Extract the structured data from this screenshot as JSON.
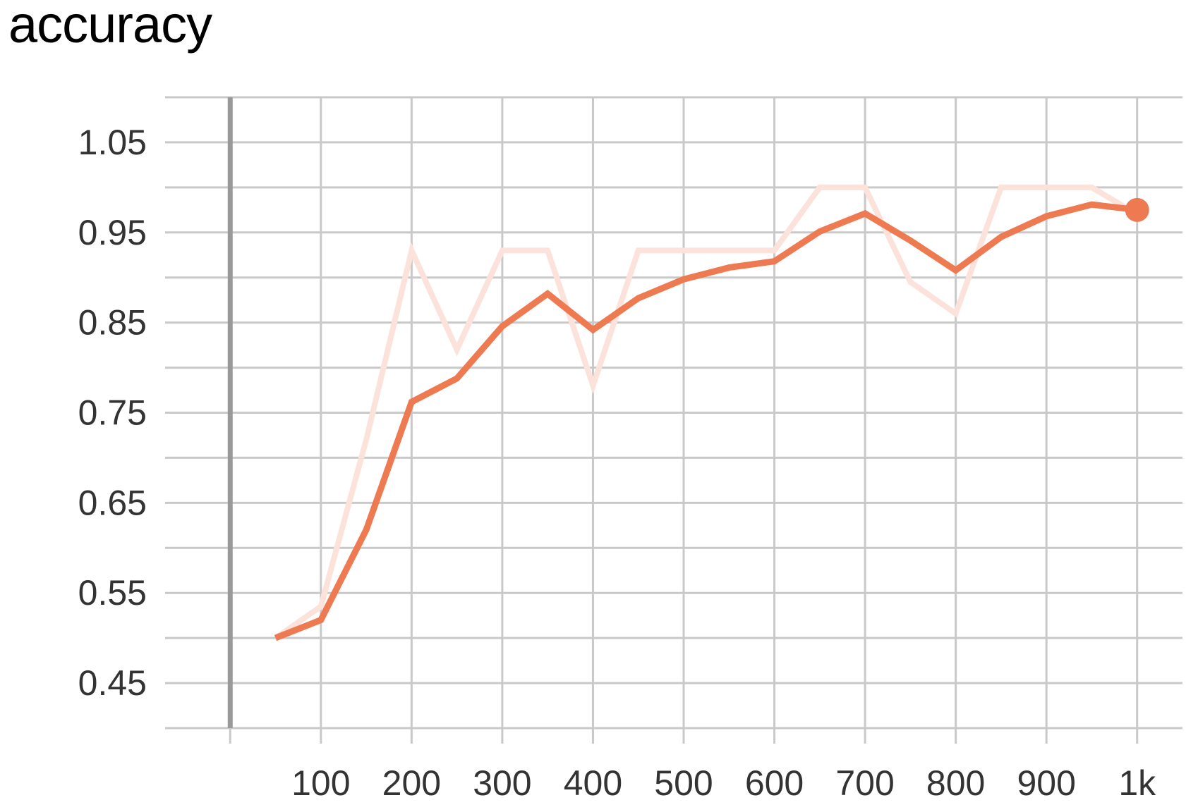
{
  "chart_data": {
    "type": "line",
    "title": "accuracy",
    "xlabel": "",
    "ylabel": "",
    "xlim": [
      -50,
      1050
    ],
    "ylim": [
      0.4,
      1.1
    ],
    "x_ticks": [
      100,
      200,
      300,
      400,
      500,
      600,
      700,
      800,
      900,
      1000
    ],
    "x_tick_labels": [
      "100",
      "200",
      "300",
      "400",
      "500",
      "600",
      "700",
      "800",
      "900",
      "1k"
    ],
    "y_ticks": [
      0.45,
      0.55,
      0.65,
      0.75,
      0.85,
      0.95,
      1.05
    ],
    "y_tick_labels": [
      "0.45",
      "0.55",
      "0.65",
      "0.75",
      "0.85",
      "0.95",
      "1.05"
    ],
    "grid": true,
    "series": [
      {
        "role": "raw",
        "color": "#fbe2da",
        "x": [
          50,
          100,
          150,
          200,
          250,
          300,
          350,
          400,
          450,
          500,
          550,
          600,
          650,
          700,
          750,
          800,
          850,
          900,
          950,
          1000
        ],
        "values": [
          0.5,
          0.535,
          0.72,
          0.93,
          0.82,
          0.93,
          0.93,
          0.78,
          0.93,
          0.93,
          0.93,
          0.93,
          1.0,
          1.0,
          0.895,
          0.86,
          1.0,
          1.0,
          1.0,
          0.97
        ]
      },
      {
        "role": "smoothed",
        "color": "#ee7a52",
        "x": [
          50,
          100,
          150,
          200,
          250,
          300,
          350,
          400,
          450,
          500,
          550,
          600,
          650,
          700,
          750,
          800,
          850,
          900,
          950,
          1000
        ],
        "values": [
          0.5,
          0.52,
          0.62,
          0.762,
          0.788,
          0.846,
          0.882,
          0.842,
          0.877,
          0.898,
          0.911,
          0.918,
          0.951,
          0.971,
          0.941,
          0.908,
          0.945,
          0.968,
          0.981,
          0.975
        ]
      }
    ]
  }
}
